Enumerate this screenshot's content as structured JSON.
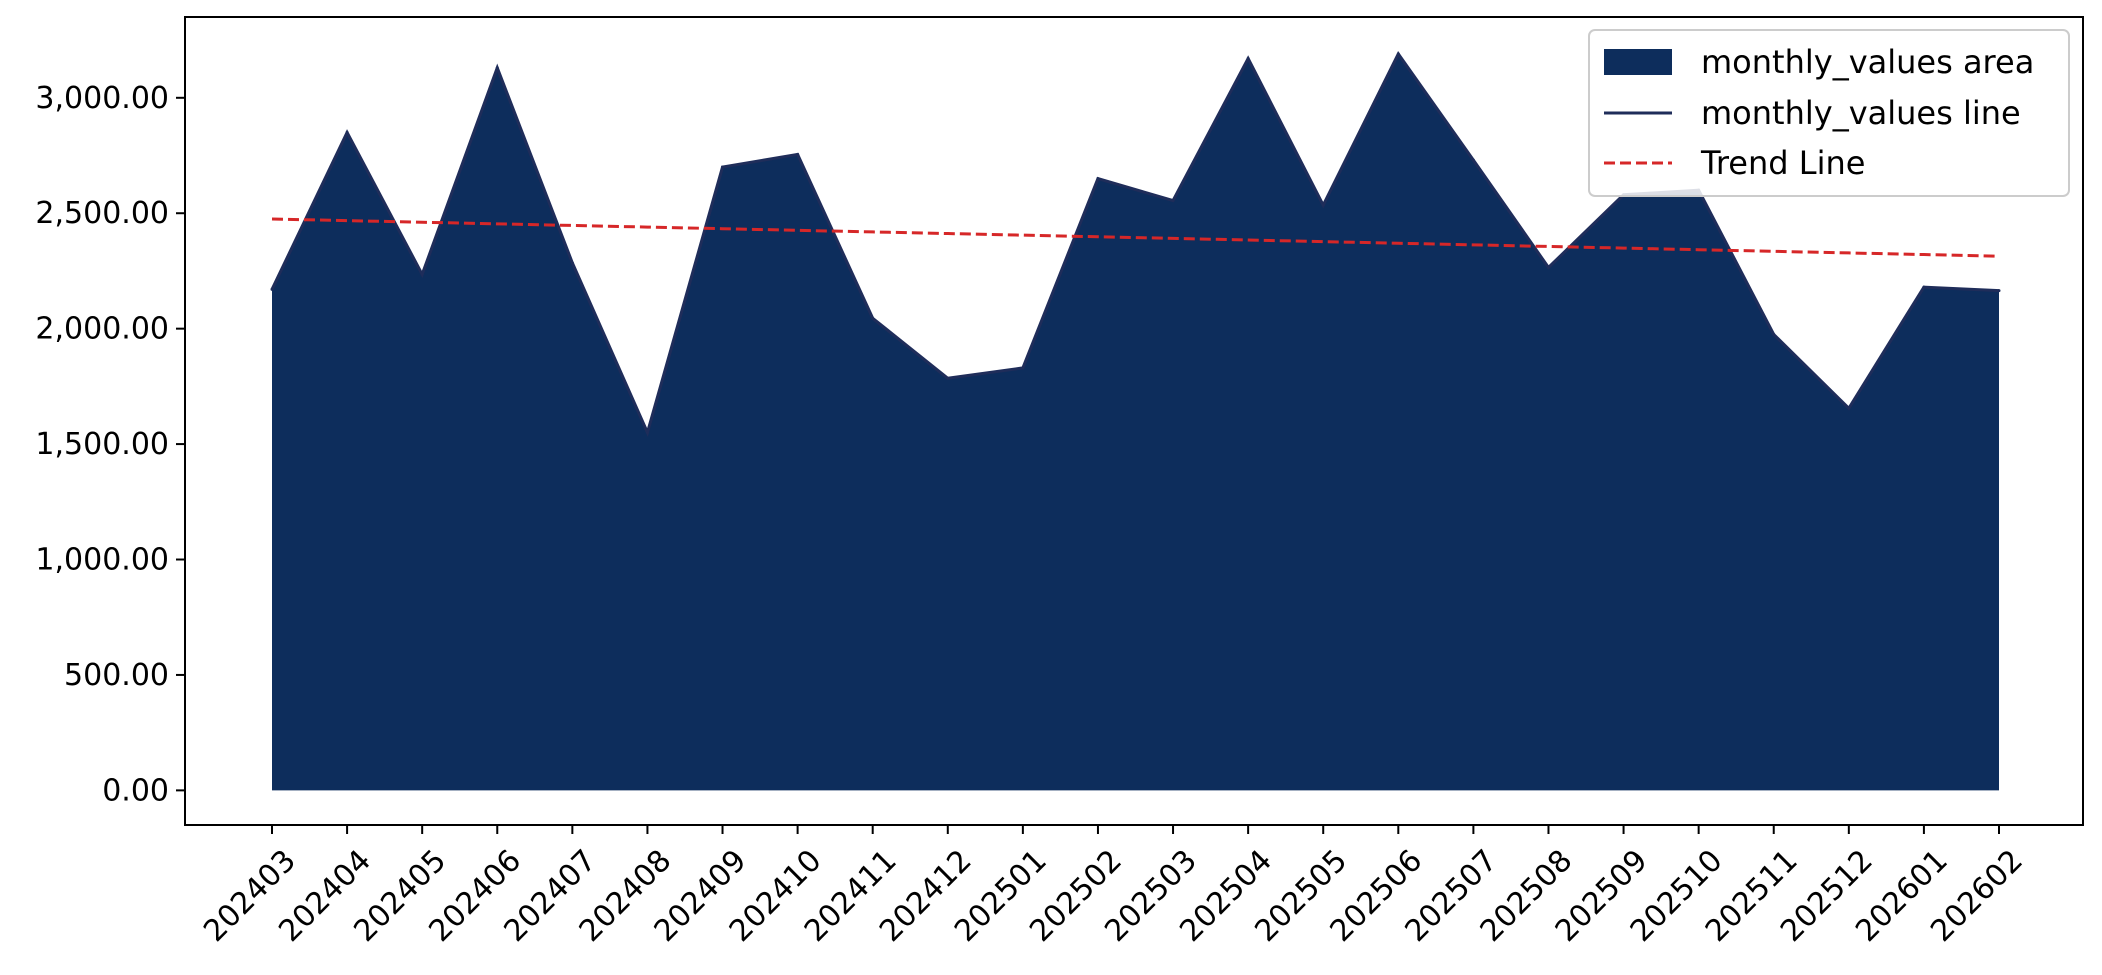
{
  "chart_data": {
    "type": "area",
    "categories": [
      "202403",
      "202404",
      "202405",
      "202406",
      "202407",
      "202408",
      "202409",
      "202410",
      "202411",
      "202412",
      "202501",
      "202502",
      "202503",
      "202504",
      "202505",
      "202506",
      "202507",
      "202508",
      "202509",
      "202510",
      "202511",
      "202512",
      "202601",
      "202602"
    ],
    "series": [
      {
        "name": "monthly_values area",
        "kind": "area",
        "color": "#0d2d5c",
        "values": [
          2170,
          2850,
          2235,
          3130,
          2285,
          1550,
          2700,
          2755,
          2045,
          1785,
          1830,
          2650,
          2555,
          3170,
          2535,
          3190,
          2730,
          2265,
          2580,
          2600,
          1975,
          1655,
          2180,
          2165
        ]
      },
      {
        "name": "monthly_values line",
        "kind": "line",
        "color": "#1f2d5a",
        "values": [
          2170,
          2850,
          2235,
          3130,
          2285,
          1550,
          2700,
          2755,
          2045,
          1785,
          1830,
          2650,
          2555,
          3170,
          2535,
          3190,
          2730,
          2265,
          2580,
          2600,
          1975,
          1655,
          2180,
          2165
        ]
      },
      {
        "name": "Trend Line",
        "kind": "dashed-line",
        "color": "#d62728",
        "values": [
          2475,
          2468,
          2461,
          2454,
          2447,
          2440,
          2433,
          2426,
          2419,
          2412,
          2405,
          2398,
          2391,
          2384,
          2377,
          2370,
          2363,
          2356,
          2349,
          2342,
          2335,
          2328,
          2321,
          2314
        ]
      }
    ],
    "y_ticks": [
      "0.00",
      "500.00",
      "1,000.00",
      "1,500.00",
      "2,000.00",
      "2,500.00",
      "3,000.00"
    ],
    "y_tick_values": [
      0,
      500,
      1000,
      1500,
      2000,
      2500,
      3000
    ],
    "ylim": [
      -150,
      3350
    ],
    "title": "",
    "xlabel": "",
    "ylabel": "",
    "grid": false,
    "legend_position": "top-right"
  }
}
